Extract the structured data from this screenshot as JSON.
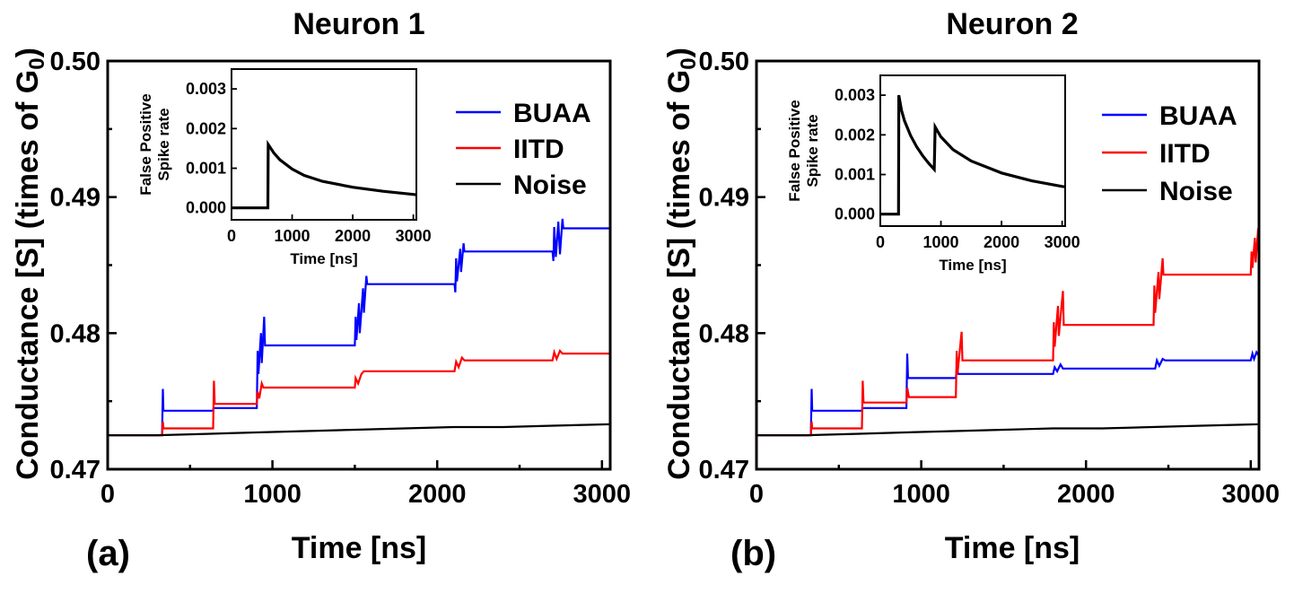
{
  "chart_data": [
    {
      "type": "line",
      "title": "Neuron 1",
      "panel_label": "(a)",
      "xlabel": "Time [ns]",
      "ylabel": "Conductance [S] (times of G",
      "ylabel_sub": "0",
      "ylabel_end": ")",
      "xlim": [
        0,
        3050
      ],
      "ylim": [
        0.47,
        0.5
      ],
      "xticks": [
        0,
        1000,
        2000,
        3000
      ],
      "xtick_labels": [
        "0",
        "1000",
        "2000",
        "3000"
      ],
      "yticks": [
        0.47,
        0.48,
        0.49,
        0.5
      ],
      "ytick_labels": [
        "0.47",
        "0.48",
        "0.49",
        "0.50"
      ],
      "legend_position": "top-right",
      "series": [
        {
          "name": "BUAA",
          "color": "#0000ff",
          "points": [
            [
              0,
              0.4725
            ],
            [
              330,
              0.4725
            ],
            [
              335,
              0.4759
            ],
            [
              338,
              0.4743
            ],
            [
              640,
              0.4743
            ],
            [
              642,
              0.4745
            ],
            [
              905,
              0.4745
            ],
            [
              910,
              0.4787
            ],
            [
              915,
              0.477
            ],
            [
              930,
              0.48
            ],
            [
              935,
              0.4778
            ],
            [
              950,
              0.4812
            ],
            [
              955,
              0.4791
            ],
            [
              1500,
              0.4791
            ],
            [
              1505,
              0.4812
            ],
            [
              1510,
              0.4795
            ],
            [
              1525,
              0.4822
            ],
            [
              1530,
              0.48
            ],
            [
              1550,
              0.4833
            ],
            [
              1555,
              0.4815
            ],
            [
              1570,
              0.4842
            ],
            [
              1575,
              0.4836
            ],
            [
              2105,
              0.4836
            ],
            [
              2110,
              0.483
            ],
            [
              2115,
              0.4855
            ],
            [
              2120,
              0.4838
            ],
            [
              2140,
              0.4862
            ],
            [
              2145,
              0.4845
            ],
            [
              2160,
              0.4866
            ],
            [
              2165,
              0.486
            ],
            [
              2700,
              0.486
            ],
            [
              2705,
              0.4853
            ],
            [
              2710,
              0.4878
            ],
            [
              2720,
              0.4856
            ],
            [
              2735,
              0.4882
            ],
            [
              2745,
              0.4858
            ],
            [
              2760,
              0.4884
            ],
            [
              2765,
              0.4877
            ],
            [
              3050,
              0.4877
            ]
          ]
        },
        {
          "name": "IITD",
          "color": "#ff0000",
          "points": [
            [
              0,
              0.4725
            ],
            [
              330,
              0.4725
            ],
            [
              335,
              0.4735
            ],
            [
              338,
              0.473
            ],
            [
              640,
              0.473
            ],
            [
              645,
              0.4765
            ],
            [
              650,
              0.4748
            ],
            [
              905,
              0.4748
            ],
            [
              910,
              0.4757
            ],
            [
              920,
              0.4752
            ],
            [
              935,
              0.4763
            ],
            [
              945,
              0.476
            ],
            [
              1500,
              0.476
            ],
            [
              1505,
              0.4767
            ],
            [
              1520,
              0.4763
            ],
            [
              1540,
              0.477
            ],
            [
              1555,
              0.4772
            ],
            [
              2105,
              0.4772
            ],
            [
              2115,
              0.4779
            ],
            [
              2130,
              0.4775
            ],
            [
              2150,
              0.4782
            ],
            [
              2165,
              0.478
            ],
            [
              2700,
              0.478
            ],
            [
              2710,
              0.4786
            ],
            [
              2725,
              0.4781
            ],
            [
              2745,
              0.4787
            ],
            [
              2760,
              0.4785
            ],
            [
              3050,
              0.4785
            ]
          ]
        },
        {
          "name": "Noise",
          "color": "#000000",
          "points": [
            [
              0,
              0.4725
            ],
            [
              300,
              0.4725
            ],
            [
              600,
              0.4726
            ],
            [
              900,
              0.4727
            ],
            [
              1200,
              0.4728
            ],
            [
              1500,
              0.4729
            ],
            [
              1800,
              0.473
            ],
            [
              2100,
              0.4731
            ],
            [
              2400,
              0.4731
            ],
            [
              2700,
              0.4732
            ],
            [
              3050,
              0.4733
            ]
          ]
        }
      ],
      "inset": {
        "xlabel": "Time [ns]",
        "ylabel_line1": "False Positive",
        "ylabel_line2": "Spike rate",
        "xlim": [
          0,
          3050
        ],
        "ylim": [
          -0.0003,
          0.0035
        ],
        "xticks": [
          0,
          1000,
          2000,
          3000
        ],
        "xtick_labels": [
          "0",
          "1000",
          "2000",
          "3000"
        ],
        "yticks": [
          0,
          0.001,
          0.002,
          0.003
        ],
        "ytick_labels": [
          "0.000",
          "0.001",
          "0.002",
          "0.003"
        ],
        "series": [
          {
            "color": "#000000",
            "points": [
              [
                0,
                0
              ],
              [
                580,
                0
              ],
              [
                600,
                0
              ],
              [
                605,
                0.0016
              ],
              [
                700,
                0.00138
              ],
              [
                800,
                0.00121
              ],
              [
                1000,
                0.00098
              ],
              [
                1200,
                0.00082
              ],
              [
                1500,
                0.00067
              ],
              [
                2000,
                0.00052
              ],
              [
                2500,
                0.00042
              ],
              [
                3000,
                0.00034
              ],
              [
                3050,
                0.00033
              ]
            ]
          }
        ]
      }
    },
    {
      "type": "line",
      "title": "Neuron 2",
      "panel_label": "(b)",
      "xlabel": "Time [ns]",
      "ylabel": "Conductance [S] (times of G",
      "ylabel_sub": "0",
      "ylabel_end": ")",
      "xlim": [
        0,
        3050
      ],
      "ylim": [
        0.47,
        0.5
      ],
      "xticks": [
        0,
        1000,
        2000,
        3000
      ],
      "xtick_labels": [
        "0",
        "1000",
        "2000",
        "3000"
      ],
      "yticks": [
        0.47,
        0.48,
        0.49,
        0.5
      ],
      "ytick_labels": [
        "0.47",
        "0.48",
        "0.49",
        "0.50"
      ],
      "legend_position": "top-right",
      "series": [
        {
          "name": "BUAA",
          "color": "#0000ff",
          "points": [
            [
              0,
              0.4725
            ],
            [
              330,
              0.4725
            ],
            [
              335,
              0.4759
            ],
            [
              338,
              0.4743
            ],
            [
              640,
              0.4743
            ],
            [
              645,
              0.4745
            ],
            [
              910,
              0.4745
            ],
            [
              915,
              0.4785
            ],
            [
              920,
              0.4767
            ],
            [
              1210,
              0.4767
            ],
            [
              1215,
              0.4774
            ],
            [
              1225,
              0.477
            ],
            [
              1800,
              0.477
            ],
            [
              1810,
              0.4775
            ],
            [
              1825,
              0.4772
            ],
            [
              1845,
              0.4777
            ],
            [
              1860,
              0.4774
            ],
            [
              2420,
              0.4774
            ],
            [
              2430,
              0.478
            ],
            [
              2445,
              0.4776
            ],
            [
              2465,
              0.4781
            ],
            [
              2480,
              0.478
            ],
            [
              3000,
              0.478
            ],
            [
              3010,
              0.4785
            ],
            [
              3020,
              0.4781
            ],
            [
              3035,
              0.4786
            ],
            [
              3050,
              0.4783
            ]
          ]
        },
        {
          "name": "IITD",
          "color": "#ff0000",
          "points": [
            [
              0,
              0.4725
            ],
            [
              330,
              0.4725
            ],
            [
              335,
              0.4735
            ],
            [
              338,
              0.473
            ],
            [
              640,
              0.473
            ],
            [
              645,
              0.4765
            ],
            [
              650,
              0.4749
            ],
            [
              910,
              0.4749
            ],
            [
              915,
              0.476
            ],
            [
              925,
              0.4753
            ],
            [
              1210,
              0.4753
            ],
            [
              1215,
              0.4787
            ],
            [
              1220,
              0.477
            ],
            [
              1245,
              0.4801
            ],
            [
              1250,
              0.478
            ],
            [
              1800,
              0.478
            ],
            [
              1805,
              0.4808
            ],
            [
              1810,
              0.479
            ],
            [
              1830,
              0.482
            ],
            [
              1835,
              0.4798
            ],
            [
              1860,
              0.4831
            ],
            [
              1865,
              0.4806
            ],
            [
              2410,
              0.4806
            ],
            [
              2415,
              0.4835
            ],
            [
              2420,
              0.4815
            ],
            [
              2440,
              0.4845
            ],
            [
              2445,
              0.4825
            ],
            [
              2465,
              0.4855
            ],
            [
              2470,
              0.4843
            ],
            [
              3000,
              0.4843
            ],
            [
              3005,
              0.486
            ],
            [
              3010,
              0.4848
            ],
            [
              3025,
              0.487
            ],
            [
              3030,
              0.4852
            ],
            [
              3045,
              0.4877
            ],
            [
              3050,
              0.486
            ]
          ]
        },
        {
          "name": "Noise",
          "color": "#000000",
          "points": [
            [
              0,
              0.4725
            ],
            [
              300,
              0.4725
            ],
            [
              600,
              0.4726
            ],
            [
              900,
              0.4727
            ],
            [
              1200,
              0.4728
            ],
            [
              1500,
              0.4729
            ],
            [
              1800,
              0.473
            ],
            [
              2100,
              0.473
            ],
            [
              2400,
              0.4731
            ],
            [
              2700,
              0.4732
            ],
            [
              3050,
              0.4733
            ]
          ]
        }
      ],
      "inset": {
        "xlabel": "Time [ns]",
        "ylabel_line1": "False Positive",
        "ylabel_line2": "Spike rate",
        "xlim": [
          0,
          3050
        ],
        "ylim": [
          -0.0003,
          0.0035
        ],
        "xticks": [
          0,
          1000,
          2000,
          3000
        ],
        "xtick_labels": [
          "0",
          "1000",
          "2000",
          "3000"
        ],
        "yticks": [
          0,
          0.001,
          0.002,
          0.003
        ],
        "ytick_labels": [
          "0.000",
          "0.001",
          "0.002",
          "0.003"
        ],
        "series": [
          {
            "color": "#000000",
            "points": [
              [
                0,
                0
              ],
              [
                280,
                0
              ],
              [
                300,
                0
              ],
              [
                305,
                0.003
              ],
              [
                350,
                0.00262
              ],
              [
                400,
                0.00235
              ],
              [
                500,
                0.00198
              ],
              [
                600,
                0.0017
              ],
              [
                700,
                0.00147
              ],
              [
                800,
                0.00128
              ],
              [
                890,
                0.00113
              ],
              [
                905,
                0.0022
              ],
              [
                1000,
                0.00195
              ],
              [
                1200,
                0.00163
              ],
              [
                1500,
                0.00134
              ],
              [
                2000,
                0.00104
              ],
              [
                2500,
                0.00084
              ],
              [
                3000,
                0.0007
              ],
              [
                3050,
                0.00069
              ]
            ]
          }
        ]
      }
    }
  ]
}
